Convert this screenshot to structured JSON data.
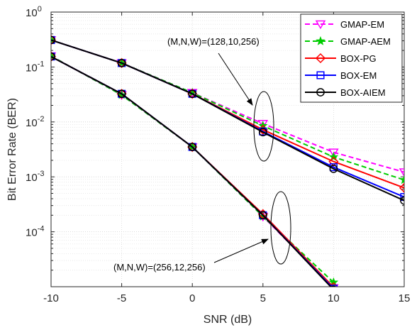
{
  "chart_data": {
    "type": "line",
    "xlabel": "SNR (dB)",
    "ylabel": "Bit Error Rate (BER)",
    "x": [
      -10,
      -5,
      0,
      5,
      10,
      15
    ],
    "xlim": [
      -10,
      15
    ],
    "ylim_log10": [
      -5,
      0
    ],
    "yscale": "log",
    "grid": true,
    "legend_position": "top-right",
    "x_ticks": [
      "-10",
      "-5",
      "0",
      "5",
      "10",
      "15"
    ],
    "y_ticks": [
      {
        "base": "10",
        "exp": "0",
        "p": 0
      },
      {
        "base": "10",
        "exp": "-1",
        "p": -1
      },
      {
        "base": "10",
        "exp": "-2",
        "p": -2
      },
      {
        "base": "10",
        "exp": "-3",
        "p": -3
      },
      {
        "base": "10",
        "exp": "-4",
        "p": -4
      }
    ],
    "series": [
      {
        "name": "GMAP-EM",
        "color": "#ff00ff",
        "dash": "dashed",
        "marker": "triangle-down",
        "groups": [
          [
            0.31,
            0.118,
            0.034,
            0.0093,
            0.0028,
            0.00122
          ],
          [
            0.158,
            0.031,
            0.0035,
            0.00019,
            9.5e-06,
            null
          ]
        ]
      },
      {
        "name": "GMAP-AEM",
        "color": "#00cc00",
        "dash": "dashed",
        "marker": "star",
        "groups": [
          [
            0.31,
            0.118,
            0.034,
            0.0085,
            0.0023,
            0.00088
          ],
          [
            0.158,
            0.031,
            0.0035,
            0.00019,
            1.2e-05,
            null
          ]
        ]
      },
      {
        "name": "BOX-PG",
        "color": "#ff0000",
        "dash": "solid",
        "marker": "diamond",
        "groups": [
          [
            0.31,
            0.118,
            0.0325,
            0.0072,
            0.0019,
            0.00063
          ],
          [
            0.155,
            0.0325,
            0.0035,
            0.00021,
            9.8e-06,
            null
          ]
        ]
      },
      {
        "name": "BOX-EM",
        "color": "#0000ff",
        "dash": "solid",
        "marker": "square",
        "groups": [
          [
            0.31,
            0.118,
            0.0325,
            0.0067,
            0.0015,
            0.00043
          ],
          [
            0.155,
            0.0325,
            0.0035,
            0.0002,
            9.2e-06,
            null
          ]
        ]
      },
      {
        "name": "BOX-AIEM",
        "color": "#000000",
        "dash": "solid",
        "marker": "circle",
        "groups": [
          [
            0.31,
            0.118,
            0.0325,
            0.0065,
            0.0014,
            0.00037
          ],
          [
            0.155,
            0.0325,
            0.0035,
            0.0002,
            8.8e-06,
            null
          ]
        ]
      }
    ],
    "annotations": [
      {
        "text": "(M,N,W)=(128,10,256)"
      },
      {
        "text": "(M,N,W)=(256,12,256)"
      }
    ]
  }
}
